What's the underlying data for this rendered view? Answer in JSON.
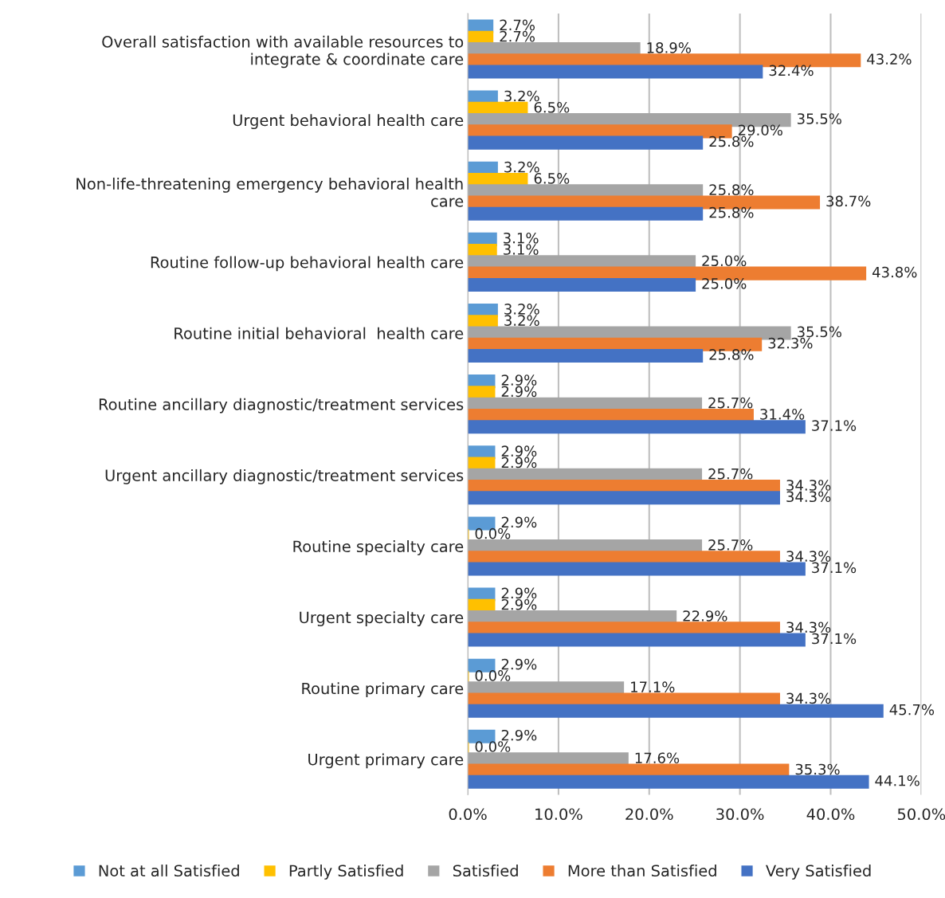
{
  "chart_data": {
    "type": "bar",
    "orientation": "horizontal",
    "categories": [
      "Overall satisfaction with available resources to integrate & coordinate care",
      "Urgent behavioral health care",
      "Non-life-threatening emergency behavioral health care",
      "Routine follow-up behavioral health care",
      "Routine initial behavioral  health care",
      "Routine ancillary diagnostic/treatment services",
      "Urgent ancillary diagnostic/treatment services",
      "Routine specialty care",
      "Urgent specialty care",
      "Routine primary care",
      "Urgent primary care"
    ],
    "series": [
      {
        "name": "Not at all Satisfied",
        "color": "#5b9bd5",
        "values": [
          2.7,
          3.2,
          3.2,
          3.1,
          3.2,
          2.9,
          2.9,
          2.9,
          2.9,
          2.9,
          2.9
        ],
        "value_labels": [
          "2.7%",
          "3.2%",
          "3.2%",
          "3.1%",
          "3.2%",
          "2.9%",
          "2.9%",
          "2.9%",
          "2.9%",
          "2.9%",
          "2.9%"
        ]
      },
      {
        "name": "Partly Satisfied",
        "color": "#ffc000",
        "values": [
          2.7,
          6.5,
          6.5,
          3.1,
          3.2,
          2.9,
          2.9,
          0.0,
          2.9,
          0.0,
          0.0
        ],
        "value_labels": [
          "2.7%",
          "6.5%",
          "6.5%",
          "3.1%",
          "3.2%",
          "2.9%",
          "2.9%",
          "0.0%",
          "2.9%",
          "0.0%",
          "0.0%"
        ]
      },
      {
        "name": "Satisfied",
        "color": "#a5a5a5",
        "values": [
          18.9,
          35.5,
          25.8,
          25.0,
          35.5,
          25.7,
          25.7,
          25.7,
          22.9,
          17.1,
          17.6
        ],
        "value_labels": [
          "18.9%",
          "35.5%",
          "25.8%",
          "25.0%",
          "35.5%",
          "25.7%",
          "25.7%",
          "25.7%",
          "22.9%",
          "17.1%",
          "17.6%"
        ]
      },
      {
        "name": "More than Satisfied",
        "color": "#ed7d31",
        "values": [
          43.2,
          29.0,
          38.7,
          43.8,
          32.3,
          31.4,
          34.3,
          34.3,
          34.3,
          34.3,
          35.3
        ],
        "value_labels": [
          "43.2%",
          "29.0%",
          "38.7%",
          "43.8%",
          "32.3%",
          "31.4%",
          "34.3%",
          "34.3%",
          "34.3%",
          "34.3%",
          "35.3%"
        ]
      },
      {
        "name": "Very Satisfied",
        "color": "#4472c4",
        "values": [
          32.4,
          25.8,
          25.8,
          25.0,
          25.8,
          37.1,
          34.3,
          37.1,
          37.1,
          45.7,
          44.1
        ],
        "value_labels": [
          "32.4%",
          "25.8%",
          "25.8%",
          "25.0%",
          "25.8%",
          "37.1%",
          "34.3%",
          "37.1%",
          "37.1%",
          "45.7%",
          "44.1%"
        ]
      }
    ],
    "xlim": [
      0,
      50
    ],
    "xticks": [
      {
        "value": 0,
        "label": "0.0%"
      },
      {
        "value": 10,
        "label": "10.0%"
      },
      {
        "value": 20,
        "label": "20.0%"
      },
      {
        "value": 30,
        "label": "30.0%"
      },
      {
        "value": 40,
        "label": "40.0%"
      },
      {
        "value": 50,
        "label": "50.0%"
      }
    ],
    "grid": "x",
    "legend": "bottom"
  }
}
